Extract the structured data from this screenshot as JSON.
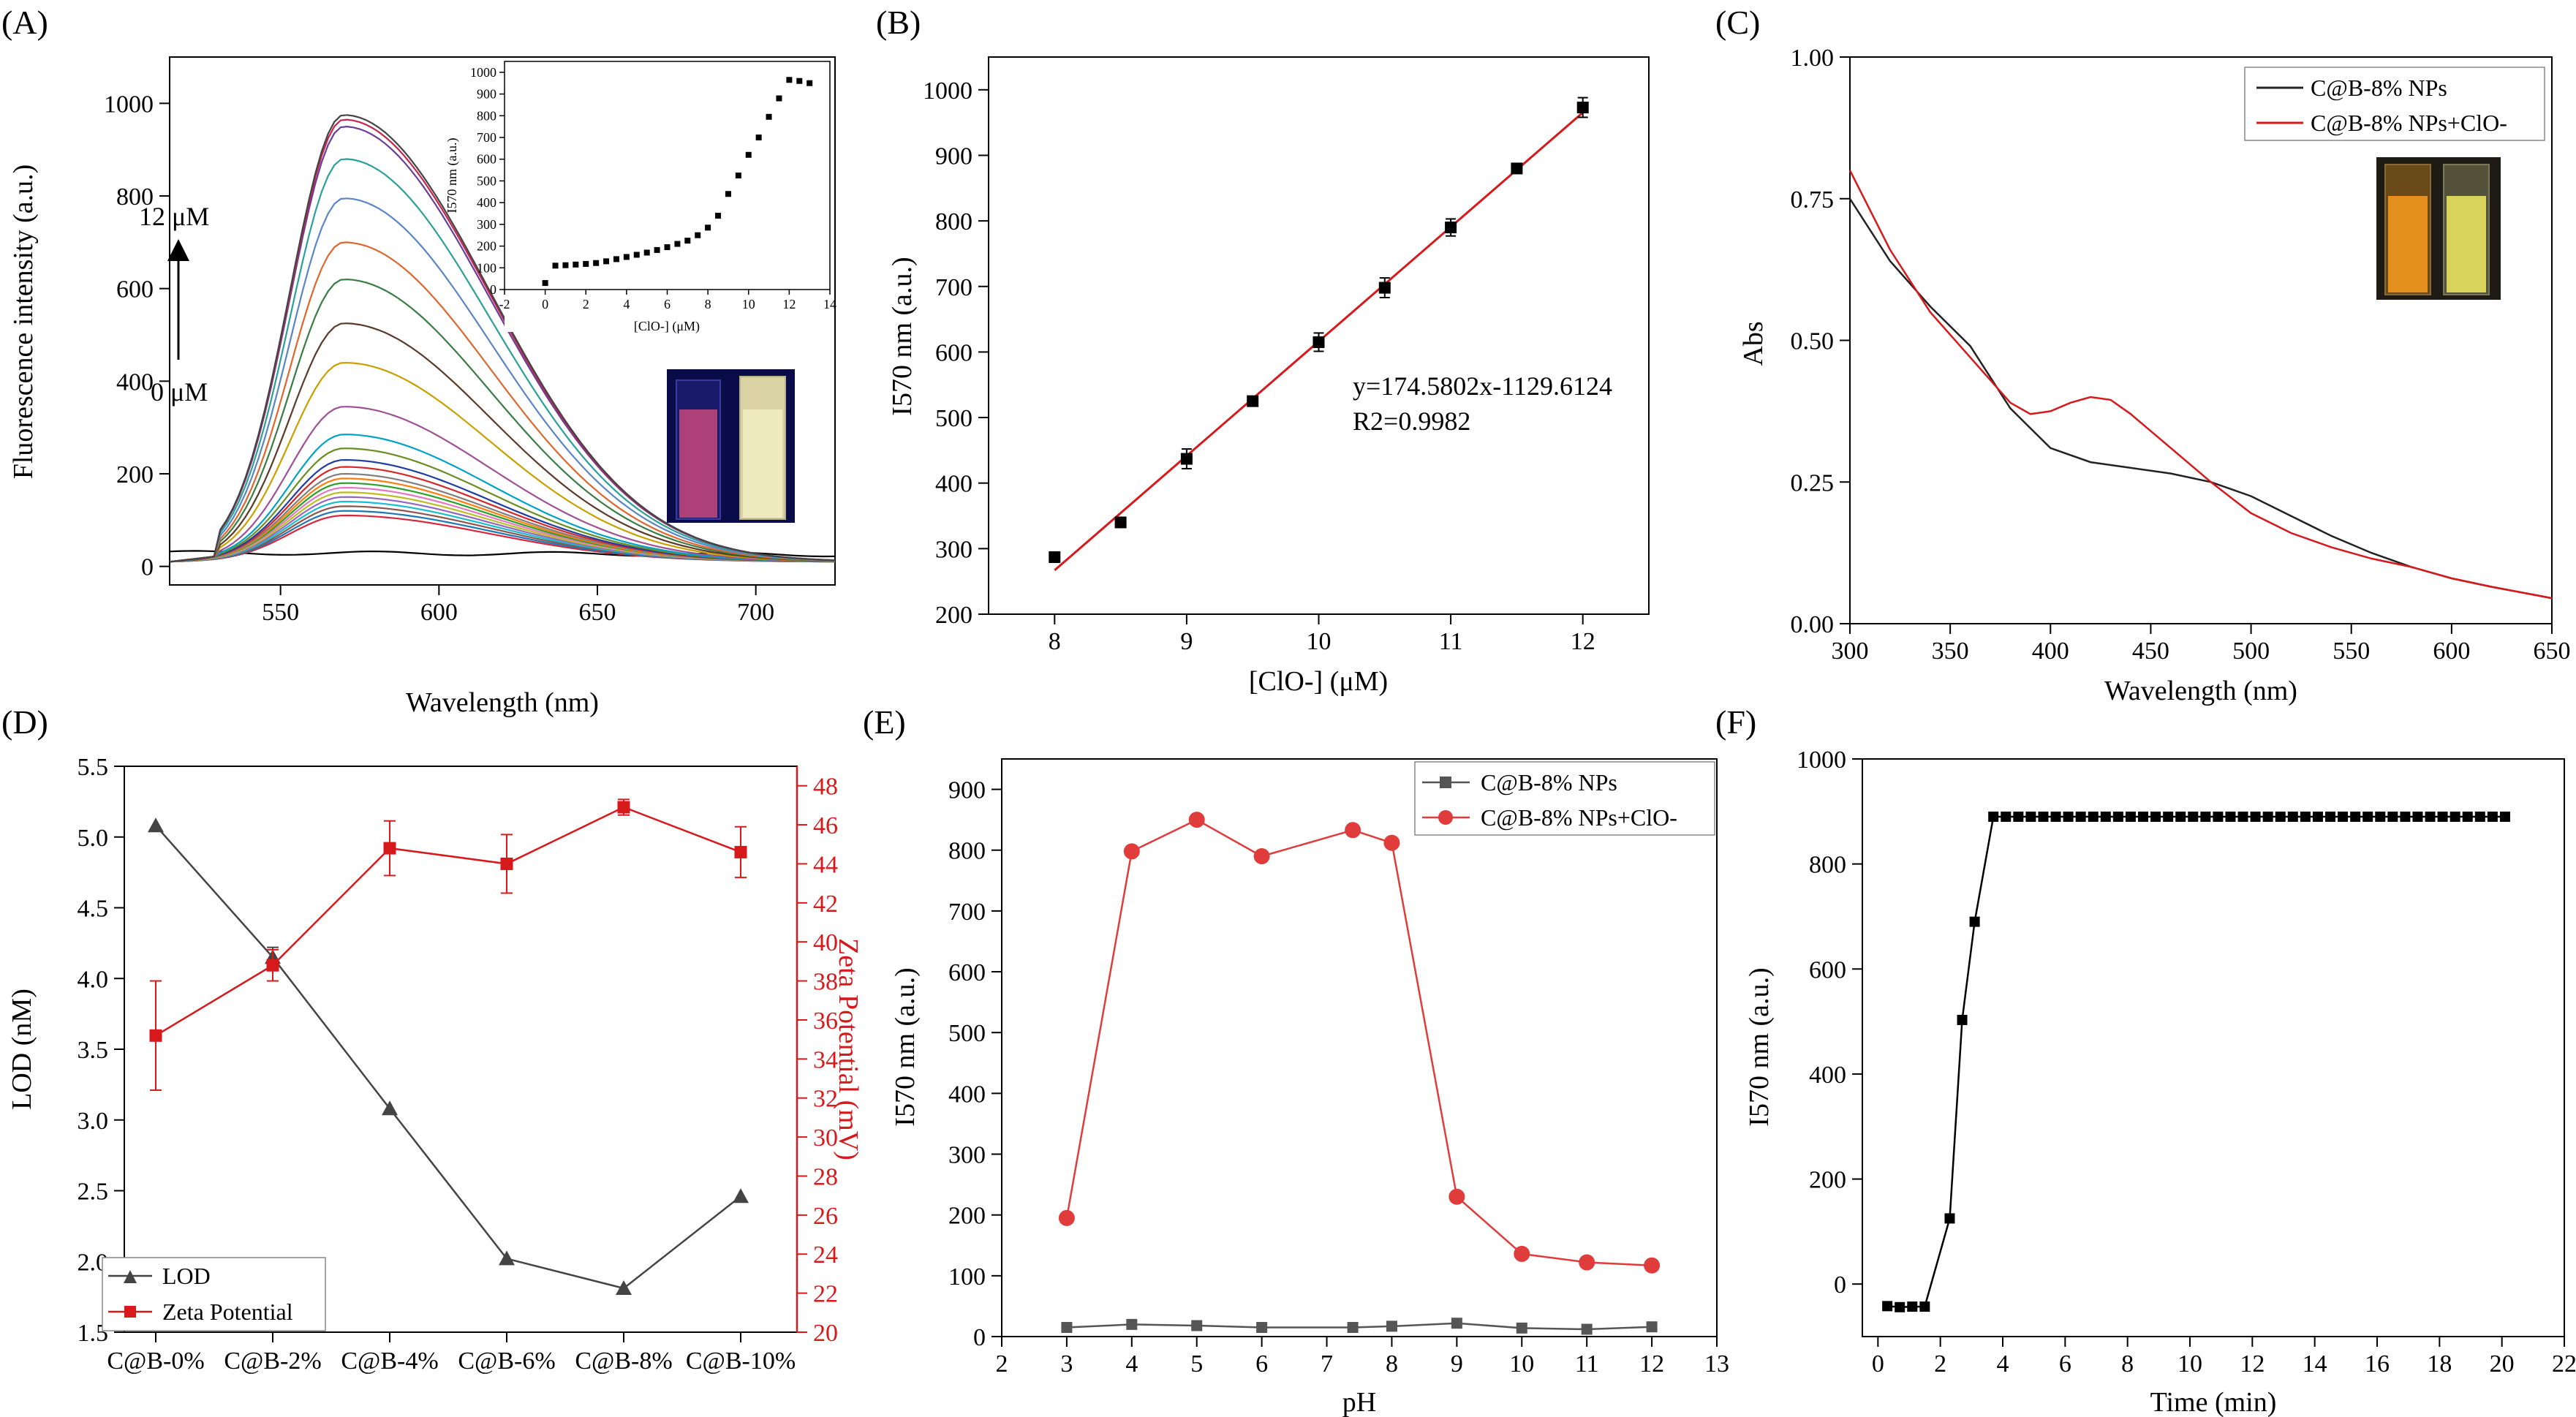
{
  "chart_data": [
    {
      "id": "A",
      "panel_label": "(A)",
      "type": "line",
      "xlabel": "Wavelength (nm)",
      "ylabel": "Fluorescence intensity (a.u.)",
      "xlim": [
        515,
        725
      ],
      "ylim": [
        -40,
        1100
      ],
      "xticks": [
        550,
        600,
        650,
        700
      ],
      "yticks": [
        0,
        200,
        400,
        600,
        800,
        1000
      ],
      "arrow_top_label": "12 μM",
      "arrow_bottom_label": "0 μM",
      "peak_wavelength": 570,
      "series_peaks": [
        30,
        110,
        120,
        130,
        140,
        150,
        160,
        170,
        180,
        190,
        200,
        215,
        230,
        255,
        285,
        345,
        440,
        525,
        620,
        700,
        795,
        880,
        950,
        965,
        975
      ],
      "series_colors": [
        "#000000",
        "#d7263d",
        "#1f77b4",
        "#8c564b",
        "#17becf",
        "#9467bd",
        "#bcbd22",
        "#e377c2",
        "#2ca02c",
        "#ff7f0e",
        "#7f7f7f",
        "#d62728",
        "#1f3f9f",
        "#6b8e23",
        "#00a2c8",
        "#a05195",
        "#c8a000",
        "#5b3a29",
        "#3a7d44",
        "#e0662d",
        "#5a86c5",
        "#2aa198",
        "#6a3d9a",
        "#c7254e",
        "#444444"
      ],
      "inset": {
        "type": "scatter",
        "xlabel": "[ClO-] (μM)",
        "ylabel": "I570 nm (a.u.)",
        "xlim": [
          -2,
          14
        ],
        "ylim": [
          0,
          1050
        ],
        "xticks": [
          -2,
          0,
          2,
          4,
          6,
          8,
          10,
          12,
          14
        ],
        "yticks": [
          0,
          100,
          200,
          300,
          400,
          500,
          600,
          700,
          800,
          900,
          1000
        ],
        "x": [
          0,
          0.5,
          1,
          1.5,
          2,
          2.5,
          3,
          3.5,
          4,
          4.5,
          5,
          5.5,
          6,
          6.5,
          7,
          7.5,
          8,
          8.5,
          9,
          9.5,
          10,
          10.5,
          11,
          11.5,
          12,
          12.5,
          13
        ],
        "y": [
          30,
          110,
          112,
          115,
          118,
          122,
          130,
          140,
          150,
          160,
          170,
          182,
          195,
          210,
          225,
          250,
          285,
          340,
          440,
          525,
          620,
          700,
          795,
          880,
          965,
          960,
          950
        ]
      }
    },
    {
      "id": "B",
      "panel_label": "(B)",
      "type": "scatter",
      "xlabel": "[ClO-] (μM)",
      "ylabel": "I570 nm (a.u.)",
      "xlim": [
        7.5,
        12.5
      ],
      "ylim": [
        200,
        1050
      ],
      "xticks": [
        8,
        9,
        10,
        11,
        12
      ],
      "yticks": [
        200,
        300,
        400,
        500,
        600,
        700,
        800,
        900,
        1000
      ],
      "x": [
        8,
        8.5,
        9,
        9.5,
        10,
        10.5,
        11,
        11.5,
        12
      ],
      "y": [
        287,
        340,
        437,
        525,
        615,
        698,
        790,
        880,
        973
      ],
      "error": [
        5,
        6,
        15,
        6,
        14,
        15,
        13,
        6,
        15
      ],
      "fit_slope": 174.5802,
      "fit_intercept": -1129.6124,
      "equation": "y=174.5802x-1129.6124",
      "r2": "R2=0.9982",
      "fit_color": "#d7191c"
    },
    {
      "id": "C",
      "panel_label": "(C)",
      "type": "line",
      "xlabel": "Wavelength (nm)",
      "ylabel": "Abs",
      "xlim": [
        300,
        650
      ],
      "ylim": [
        0.0,
        1.0
      ],
      "xticks": [
        300,
        350,
        400,
        450,
        500,
        550,
        600,
        650
      ],
      "yticks": [
        "0.00",
        "0.25",
        "0.50",
        "0.75",
        "1.00"
      ],
      "series": [
        {
          "name": "C@B-8% NPs",
          "color": "#222222",
          "x": [
            300,
            320,
            340,
            360,
            380,
            400,
            420,
            440,
            460,
            480,
            500,
            520,
            540,
            560,
            580,
            600,
            620,
            650
          ],
          "y": [
            0.75,
            0.64,
            0.56,
            0.49,
            0.38,
            0.31,
            0.285,
            0.275,
            0.265,
            0.25,
            0.225,
            0.19,
            0.155,
            0.125,
            0.1,
            0.08,
            0.065,
            0.045
          ]
        },
        {
          "name": "C@B-8% NPs+ClO-",
          "color": "#d7191c",
          "x": [
            300,
            320,
            340,
            360,
            380,
            390,
            400,
            410,
            420,
            430,
            440,
            460,
            480,
            500,
            520,
            540,
            560,
            580,
            600,
            620,
            650
          ],
          "y": [
            0.8,
            0.66,
            0.55,
            0.47,
            0.39,
            0.37,
            0.375,
            0.39,
            0.4,
            0.395,
            0.37,
            0.31,
            0.25,
            0.195,
            0.16,
            0.135,
            0.115,
            0.1,
            0.08,
            0.065,
            0.045
          ]
        }
      ]
    },
    {
      "id": "D",
      "panel_label": "(D)",
      "type": "line",
      "xlabel": "",
      "ylabel": "LOD (nM)",
      "ylabel_right": "Zeta Potential (mV)",
      "categories": [
        "C@B-0%",
        "C@B-2%",
        "C@B-4%",
        "C@B-6%",
        "C@B-8%",
        "C@B-10%"
      ],
      "ylim": [
        1.5,
        5.5
      ],
      "yticks": [
        "1.5",
        "2.0",
        "2.5",
        "3.0",
        "3.5",
        "4.0",
        "4.5",
        "5.0",
        "5.5"
      ],
      "ylim_right": [
        20,
        49
      ],
      "yticks_right": [
        "20",
        "22",
        "24",
        "26",
        "28",
        "30",
        "32",
        "34",
        "36",
        "38",
        "40",
        "42",
        "44",
        "46",
        "48"
      ],
      "series": [
        {
          "name": "LOD",
          "color": "#444444",
          "axis": "left",
          "marker": "triangle",
          "values": [
            5.08,
            4.15,
            3.08,
            2.02,
            1.81,
            2.46
          ],
          "error": [
            0,
            0.07,
            0,
            0,
            0,
            0
          ]
        },
        {
          "name": "Zeta Potential",
          "color": "#d7191c",
          "axis": "right",
          "marker": "square",
          "values": [
            35.2,
            38.8,
            44.8,
            44.0,
            46.9,
            44.6
          ],
          "error": [
            2.8,
            0.8,
            1.4,
            1.5,
            0.4,
            1.3
          ]
        }
      ],
      "legend": "bottom-left"
    },
    {
      "id": "E",
      "panel_label": "(E)",
      "type": "line",
      "xlabel": "pH",
      "ylabel": "I570 nm (a.u.)",
      "xlim": [
        2,
        13
      ],
      "ylim": [
        0,
        950
      ],
      "xticks": [
        2,
        3,
        4,
        5,
        6,
        7,
        8,
        9,
        10,
        11,
        12,
        13
      ],
      "yticks": [
        0,
        100,
        200,
        300,
        400,
        500,
        600,
        700,
        800,
        900
      ],
      "x": [
        3,
        4,
        5,
        6,
        7.4,
        8,
        9,
        10,
        11,
        12
      ],
      "series": [
        {
          "name": "C@B-8% NPs",
          "color": "#555555",
          "marker": "square",
          "values": [
            15,
            20,
            18,
            15,
            15,
            17,
            22,
            14,
            12,
            16
          ]
        },
        {
          "name": "C@B-8% NPs+ClO-",
          "color": "#e03c3c",
          "marker": "circle",
          "values": [
            195,
            798,
            850,
            790,
            833,
            812,
            230,
            136,
            122,
            117
          ]
        }
      ],
      "legend": "top-right"
    },
    {
      "id": "F",
      "panel_label": "(F)",
      "type": "line",
      "xlabel": "Time (min)",
      "ylabel": "I570 nm (a.u.)",
      "xlim": [
        -0.5,
        22
      ],
      "ylim": [
        -100,
        1000
      ],
      "xticks": [
        0,
        2,
        4,
        6,
        8,
        10,
        12,
        14,
        16,
        18,
        20,
        22
      ],
      "yticks": [
        0,
        200,
        400,
        600,
        800,
        1000
      ],
      "x": [
        0.3,
        0.7,
        1.1,
        1.5,
        2.3,
        2.7,
        3.1,
        3.7
      ],
      "y": [
        -42,
        -44,
        -43,
        -43,
        125,
        503,
        690,
        890
      ],
      "plateau_value": 890,
      "plateau_start": 3.7,
      "plateau_end": 20.3,
      "plateau_step": 0.4,
      "color": "#000000"
    }
  ]
}
